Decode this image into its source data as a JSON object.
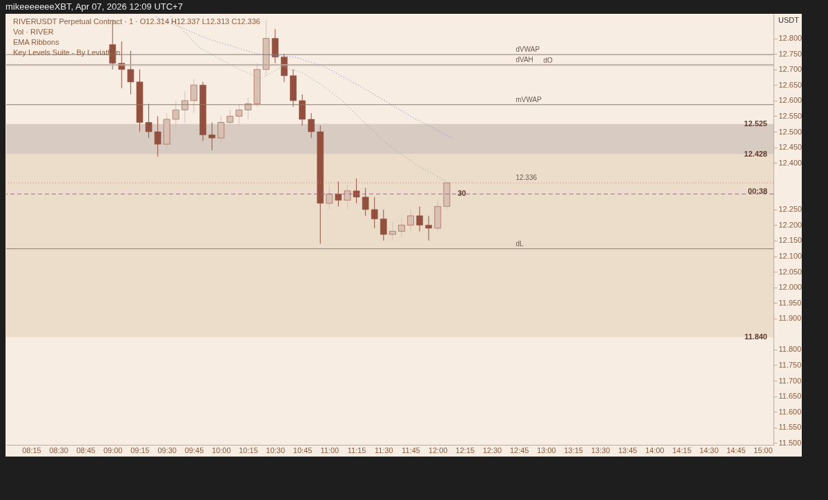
{
  "chart_data": {
    "type": "candlestick",
    "title": "RIVERUSDT Perpetual Contract · 1 · O12.314 H12.337 L12.313 C12.336",
    "subtitle": "Vol · RIVER",
    "ylabel": "USDT",
    "annotations": [
      "mikeeeeeeeXBT, Apr 07, 2026 12:09 UTC+7",
      "EMA Ribbons",
      "Key Levels Suite - By Leviathan",
      {
        "text": "12.428",
        "y": 12.428
      },
      {
        "text": "00:38",
        "y": 12.336
      },
      {
        "text": "30",
        "x": "2026-04-07T12:11",
        "y": 12.3
      }
    ],
    "x": [
      "2026-04-07T09:00",
      "2026-04-07T09:05",
      "2026-04-07T09:10",
      "2026-04-07T09:15",
      "2026-04-07T09:20",
      "2026-04-07T09:25",
      "2026-04-07T09:30",
      "2026-04-07T09:35",
      "2026-04-07T09:40",
      "2026-04-07T09:45",
      "2026-04-07T09:50",
      "2026-04-07T09:55",
      "2026-04-07T10:00",
      "2026-04-07T10:05",
      "2026-04-07T10:10",
      "2026-04-07T10:15",
      "2026-04-07T10:20",
      "2026-04-07T10:25",
      "2026-04-07T10:30",
      "2026-04-07T10:35",
      "2026-04-07T10:40",
      "2026-04-07T10:45",
      "2026-04-07T10:50",
      "2026-04-07T10:55",
      "2026-04-07T11:00",
      "2026-04-07T11:05",
      "2026-04-07T11:10",
      "2026-04-07T11:15",
      "2026-04-07T11:20",
      "2026-04-07T11:25",
      "2026-04-07T11:30",
      "2026-04-07T11:35",
      "2026-04-07T11:40",
      "2026-04-07T11:45",
      "2026-04-07T11:50",
      "2026-04-07T11:55",
      "2026-04-07T12:00",
      "2026-04-07T12:05"
    ],
    "ohlc": [
      [
        12.78,
        12.86,
        12.7,
        12.72
      ],
      [
        12.72,
        12.79,
        12.64,
        12.7
      ],
      [
        12.7,
        12.76,
        12.62,
        12.66
      ],
      [
        12.66,
        12.7,
        12.5,
        12.53
      ],
      [
        12.53,
        12.59,
        12.48,
        12.5
      ],
      [
        12.5,
        12.55,
        12.42,
        12.46
      ],
      [
        12.46,
        12.56,
        12.44,
        12.54
      ],
      [
        12.54,
        12.6,
        12.5,
        12.57
      ],
      [
        12.57,
        12.63,
        12.53,
        12.6
      ],
      [
        12.6,
        12.67,
        12.56,
        12.65
      ],
      [
        12.65,
        12.66,
        12.47,
        12.49
      ],
      [
        12.49,
        12.53,
        12.44,
        12.48
      ],
      [
        12.48,
        12.55,
        12.46,
        12.53
      ],
      [
        12.53,
        12.57,
        12.5,
        12.55
      ],
      [
        12.55,
        12.59,
        12.52,
        12.57
      ],
      [
        12.57,
        12.61,
        12.54,
        12.59
      ],
      [
        12.59,
        12.72,
        12.58,
        12.7
      ],
      [
        12.7,
        12.86,
        12.68,
        12.8
      ],
      [
        12.8,
        12.83,
        12.72,
        12.74
      ],
      [
        12.74,
        12.75,
        12.66,
        12.68
      ],
      [
        12.68,
        12.7,
        12.58,
        12.6
      ],
      [
        12.6,
        12.62,
        12.52,
        12.54
      ],
      [
        12.54,
        12.56,
        12.48,
        12.5
      ],
      [
        12.5,
        12.52,
        12.14,
        12.27
      ],
      [
        12.27,
        12.33,
        12.25,
        12.3
      ],
      [
        12.3,
        12.34,
        12.26,
        12.28
      ],
      [
        12.28,
        12.33,
        12.25,
        12.31
      ],
      [
        12.31,
        12.35,
        12.27,
        12.29
      ],
      [
        12.29,
        12.32,
        12.23,
        12.25
      ],
      [
        12.25,
        12.29,
        12.19,
        12.22
      ],
      [
        12.22,
        12.25,
        12.15,
        12.17
      ],
      [
        12.17,
        12.21,
        12.15,
        12.18
      ],
      [
        12.18,
        12.22,
        12.16,
        12.2
      ],
      [
        12.2,
        12.25,
        12.18,
        12.23
      ],
      [
        12.23,
        12.26,
        12.18,
        12.2
      ],
      [
        12.2,
        12.23,
        12.15,
        12.19
      ],
      [
        12.19,
        12.28,
        12.18,
        12.26
      ],
      [
        12.26,
        12.337,
        12.25,
        12.336
      ]
    ],
    "colors": [
      "#93503f",
      "#93503f",
      "#93503f",
      "#93503f",
      "#93503f",
      "#93503f",
      "#d8c0b2",
      "#d8c0b2",
      "#d8c0b2",
      "#d8c0b2",
      "#93503f",
      "#93503f",
      "#d8c0b2",
      "#d8c0b2",
      "#d8c0b2",
      "#d8c0b2",
      "#d8c0b2",
      "#d8c0b2",
      "#93503f",
      "#93503f",
      "#93503f",
      "#93503f",
      "#93503f",
      "#93503f",
      "#d8c0b2",
      "#93503f",
      "#d8c0b2",
      "#93503f",
      "#93503f",
      "#93503f",
      "#93503f",
      "#d8c0b2",
      "#d8c0b2",
      "#d8c0b2",
      "#93503f",
      "#93503f",
      "#d8c0b2",
      "#d8c0b2"
    ],
    "series": [
      {
        "type": "line",
        "color": "#8a8fd6",
        "line_style": "dotted",
        "x": [
          "2026-04-07T09:24",
          "2026-04-07T09:52",
          "2026-04-07T10:20",
          "2026-04-07T10:41",
          "2026-04-07T10:57",
          "2026-04-07T11:22",
          "2026-04-07T11:45",
          "2026-04-07T12:08"
        ],
        "values": [
          12.87,
          12.8,
          12.75,
          12.74,
          12.71,
          12.63,
          12.55,
          12.48
        ]
      },
      {
        "type": "line",
        "color": "#9fb48a",
        "line_style": "dotted",
        "x": [
          "2026-04-07T09:32",
          "2026-04-07T09:48",
          "2026-04-07T10:07",
          "2026-04-07T10:22",
          "2026-04-07T10:34",
          "2026-04-07T10:45",
          "2026-04-07T10:56",
          "2026-04-07T11:07",
          "2026-04-07T11:30",
          "2026-04-07T11:49",
          "2026-04-07T12:05"
        ],
        "values": [
          12.87,
          12.77,
          12.71,
          12.67,
          12.71,
          12.69,
          12.65,
          12.6,
          12.47,
          12.39,
          12.34
        ]
      }
    ],
    "ref_lines": [
      {
        "axis": "y",
        "value": 12.748,
        "label": "dVWAP",
        "color": "#8c7b70"
      },
      {
        "axis": "y",
        "value": 12.716,
        "label": "dVAH",
        "color": "#b8aaa0"
      },
      {
        "axis": "y",
        "value": 12.713,
        "label": "dO",
        "color": "#b8aaa0"
      },
      {
        "axis": "y",
        "value": 12.587,
        "label": "mVWAP",
        "color": "#8c7b70"
      },
      {
        "axis": "y",
        "value": 12.124,
        "label": "dL",
        "color": "#8c7b70"
      },
      {
        "axis": "y",
        "value": 12.3,
        "color": "#d63fd6",
        "line_style": "dashed"
      },
      {
        "axis": "y",
        "value": 12.336,
        "label": "12.336",
        "color": "#c08a7a",
        "line_style": "dotted"
      }
    ],
    "bands": [
      {
        "axis": "y",
        "from": 12.428,
        "to": 12.525,
        "label": "12.525",
        "color": "#cdbfb5"
      },
      {
        "axis": "y",
        "from": 11.84,
        "to": 12.428,
        "label": "11.840",
        "color": "#e8d6c2"
      }
    ],
    "xlim": [
      "2026-04-07T08:03",
      "2026-04-07T15:04"
    ],
    "xticks": [
      {
        "value": "2026-04-07T08:15",
        "label": "08:15"
      },
      {
        "value": "2026-04-07T08:30",
        "label": "08:30"
      },
      {
        "value": "2026-04-07T08:45",
        "label": "08:45"
      },
      {
        "value": "2026-04-07T09:00",
        "label": "09:00"
      },
      {
        "value": "2026-04-07T09:15",
        "label": "09:15"
      },
      {
        "value": "2026-04-07T09:30",
        "label": "09:30"
      },
      {
        "value": "2026-04-07T09:45",
        "label": "09:45"
      },
      {
        "value": "2026-04-07T10:00",
        "label": "10:00"
      },
      {
        "value": "2026-04-07T10:15",
        "label": "10:15"
      },
      {
        "value": "2026-04-07T10:30",
        "label": "10:30"
      },
      {
        "value": "2026-04-07T10:45",
        "label": "10:45"
      },
      {
        "value": "2026-04-07T11:00",
        "label": "11:00"
      },
      {
        "value": "2026-04-07T11:15",
        "label": "11:15"
      },
      {
        "value": "2026-04-07T11:30",
        "label": "11:30"
      },
      {
        "value": "2026-04-07T11:45",
        "label": "11:45"
      },
      {
        "value": "2026-04-07T12:00",
        "label": "12:00"
      },
      {
        "value": "2026-04-07T12:15",
        "label": "12:15"
      },
      {
        "value": "2026-04-07T12:30",
        "label": "12:30"
      },
      {
        "value": "2026-04-07T12:45",
        "label": "12:45"
      },
      {
        "value": "2026-04-07T13:00",
        "label": "13:00"
      },
      {
        "value": "2026-04-07T13:15",
        "label": "13:15"
      },
      {
        "value": "2026-04-07T13:30",
        "label": "13:30"
      },
      {
        "value": "2026-04-07T13:45",
        "label": "13:45"
      },
      {
        "value": "2026-04-07T14:00",
        "label": "14:00"
      },
      {
        "value": "2026-04-07T14:15",
        "label": "14:15"
      },
      {
        "value": "2026-04-07T14:30",
        "label": "14:30"
      },
      {
        "value": "2026-04-07T14:45",
        "label": "14:45"
      },
      {
        "value": "2026-04-07T15:00",
        "label": "15:00"
      }
    ],
    "ylim": [
      11.494,
      12.879
    ],
    "yticks": [
      {
        "value": 11.5,
        "label": "11.500"
      },
      {
        "value": 11.55,
        "label": "11.550"
      },
      {
        "value": 11.6,
        "label": "11.600"
      },
      {
        "value": 11.65,
        "label": "11.650"
      },
      {
        "value": 11.7,
        "label": "11.700"
      },
      {
        "value": 11.75,
        "label": "11.750"
      },
      {
        "value": 11.8,
        "label": "11.800"
      },
      {
        "value": 11.9,
        "label": "11.900"
      },
      {
        "value": 11.95,
        "label": "11.950"
      },
      {
        "value": 12.0,
        "label": "12.000"
      },
      {
        "value": 12.05,
        "label": "12.050"
      },
      {
        "value": 12.1,
        "label": "12.100"
      },
      {
        "value": 12.15,
        "label": "12.150"
      },
      {
        "value": 12.2,
        "label": "12.200"
      },
      {
        "value": 12.25,
        "label": "12.250"
      },
      {
        "value": 12.4,
        "label": "12.400"
      },
      {
        "value": 12.45,
        "label": "12.450"
      },
      {
        "value": 12.5,
        "label": "12.500"
      },
      {
        "value": 12.55,
        "label": "12.550"
      },
      {
        "value": 12.6,
        "label": "12.600"
      },
      {
        "value": 12.65,
        "label": "12.650"
      },
      {
        "value": 12.7,
        "label": "12.700"
      },
      {
        "value": 12.75,
        "label": "12.750"
      },
      {
        "value": 12.8,
        "label": "12.800"
      }
    ],
    "marker": "none"
  }
}
